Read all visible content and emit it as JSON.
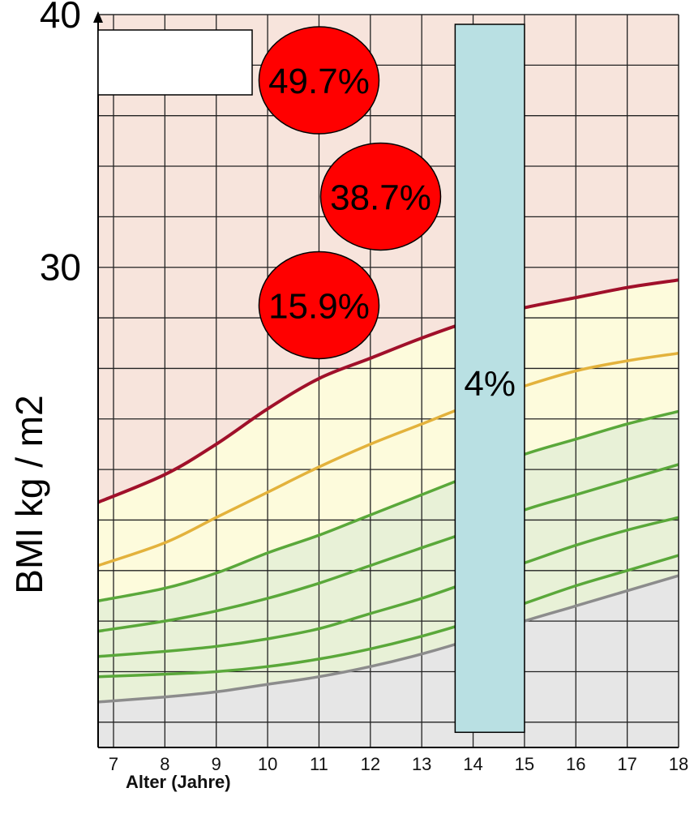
{
  "chart_data": {
    "type": "line",
    "xlabel": "Alter (Jahre)",
    "ylabel": "BMI kg / m2",
    "x_ticks": [
      7,
      8,
      9,
      10,
      11,
      12,
      13,
      14,
      15,
      16,
      17,
      18
    ],
    "xlim": [
      6.7,
      18
    ],
    "ylim": [
      11,
      40
    ],
    "y_ticks": [
      30,
      40
    ],
    "grid": true,
    "zones": {
      "obese": "#f7e4dc",
      "overweight": "#fdfbdc",
      "normal": "#e8f1d7",
      "under": "#e6e6e6"
    },
    "series": [
      {
        "color": "#a0102a",
        "x": [
          6.7,
          8,
          9,
          10,
          11,
          12,
          13,
          14,
          15,
          16,
          17,
          18
        ],
        "y": [
          20.7,
          21.8,
          23.0,
          24.4,
          25.6,
          26.4,
          27.2,
          27.9,
          28.4,
          28.8,
          29.2,
          29.5
        ]
      },
      {
        "color": "#e3b23c",
        "x": [
          6.7,
          8,
          9,
          10,
          11,
          12,
          13,
          14,
          15,
          16,
          17,
          18
        ],
        "y": [
          18.2,
          19.1,
          20.1,
          21.1,
          22.1,
          23.0,
          23.8,
          24.6,
          25.3,
          25.9,
          26.3,
          26.6
        ]
      },
      {
        "color": "#5aa83a",
        "x": [
          6.7,
          8,
          9,
          10,
          11,
          12,
          13,
          14,
          15,
          16,
          17,
          18
        ],
        "y": [
          16.8,
          17.3,
          17.9,
          18.7,
          19.4,
          20.2,
          21.0,
          21.8,
          22.6,
          23.2,
          23.8,
          24.3
        ]
      },
      {
        "color": "#5aa83a",
        "x": [
          6.7,
          8,
          9,
          10,
          11,
          12,
          13,
          14,
          15,
          16,
          17,
          18
        ],
        "y": [
          15.6,
          16.0,
          16.4,
          16.9,
          17.5,
          18.2,
          18.9,
          19.6,
          20.4,
          21.0,
          21.6,
          22.2
        ]
      },
      {
        "color": "#5aa83a",
        "x": [
          6.7,
          8,
          9,
          10,
          11,
          12,
          13,
          14,
          15,
          16,
          17,
          18
        ],
        "y": [
          14.6,
          14.8,
          15.0,
          15.3,
          15.7,
          16.3,
          16.9,
          17.6,
          18.3,
          19.0,
          19.6,
          20.1
        ]
      },
      {
        "color": "#5aa83a",
        "x": [
          6.7,
          8,
          9,
          10,
          11,
          12,
          13,
          14,
          15,
          16,
          17,
          18
        ],
        "y": [
          13.8,
          13.9,
          14.0,
          14.2,
          14.5,
          14.9,
          15.4,
          16.0,
          16.7,
          17.4,
          18.0,
          18.6
        ]
      },
      {
        "color": "#8c8c8c",
        "x": [
          6.7,
          8,
          9,
          10,
          11,
          12,
          13,
          14,
          15,
          16,
          17,
          18
        ],
        "y": [
          12.8,
          13.0,
          13.2,
          13.5,
          13.8,
          14.2,
          14.7,
          15.3,
          16.0,
          16.6,
          17.2,
          17.8
        ]
      }
    ],
    "annotations": {
      "bubbles": [
        {
          "label": "49.7%",
          "x": 11.0,
          "y": 37.4
        },
        {
          "label": "38.7%",
          "x": 12.2,
          "y": 32.8
        },
        {
          "label": "15.9%",
          "x": 11.0,
          "y": 28.5
        }
      ],
      "bar": {
        "label": "4%",
        "x0": 13.65,
        "x1": 15.0,
        "y0": 40,
        "y1": 11.6
      }
    }
  }
}
